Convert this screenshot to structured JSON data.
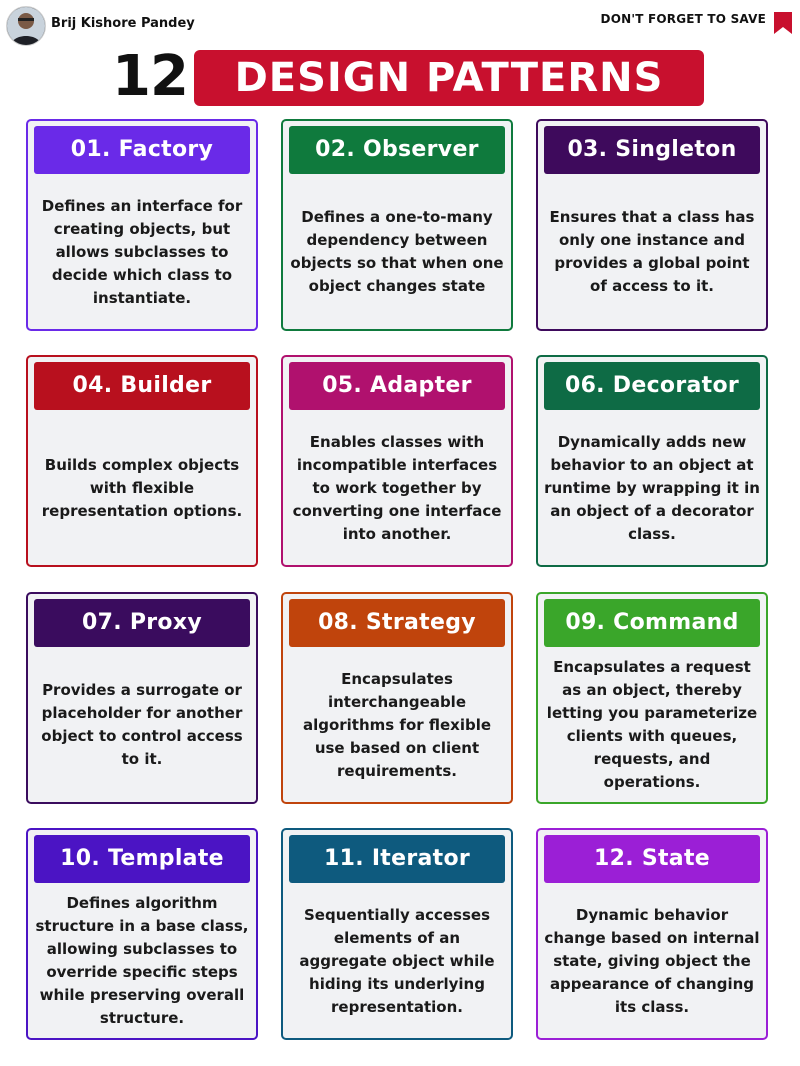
{
  "header": {
    "author": "Brij Kishore Pandey",
    "save_text": "DON'T FORGET TO SAVE",
    "bookmark_color": "#c8102e"
  },
  "title": {
    "number": "12",
    "text": "DESIGN PATTERNS",
    "banner_color": "#c8102e"
  },
  "patterns": [
    {
      "title": "01. Factory",
      "description": "Defines an interface for creating objects, but allows subclasses to decide which class to instantiate.",
      "color": "#6a2ae8"
    },
    {
      "title": "02. Observer",
      "description": "Defines a one-to-many dependency between objects so that when one object changes state",
      "color": "#0f7a3d"
    },
    {
      "title": "03. Singleton",
      "description": "Ensures that a class has only one instance and provides a global point of access to it.",
      "color": "#3e0a5c"
    },
    {
      "title": "04. Builder",
      "description": "Builds complex objects with flexible representation options.",
      "color": "#b8101e"
    },
    {
      "title": "05. Adapter",
      "description": "Enables classes with incompatible interfaces to work together by converting one interface into another.",
      "color": "#b0116e"
    },
    {
      "title": "06. Decorator",
      "description": "Dynamically adds new behavior to an object at runtime by wrapping it in an object of a decorator class.",
      "color": "#0e6b45"
    },
    {
      "title": "07. Proxy",
      "description": "Provides a surrogate or placeholder for another object to control access to it.",
      "color": "#3a0c5e"
    },
    {
      "title": "08. Strategy",
      "description": "Encapsulates interchangeable algorithms for flexible use based on client requirements.",
      "color": "#c0440c"
    },
    {
      "title": "09. Command",
      "description": "Encapsulates a request as an object, thereby letting you parameterize clients with queues, requests, and operations.",
      "color": "#3aa62a"
    },
    {
      "title": "10. Template",
      "description": "Defines algorithm structure in a base class, allowing subclasses to override specific steps while preserving overall structure.",
      "color": "#4b14c4"
    },
    {
      "title": "11. Iterator",
      "description": "Sequentially accesses elements of an aggregate object while hiding its underlying representation.",
      "color": "#0e5a7e"
    },
    {
      "title": "12. State",
      "description": "Dynamic behavior change based on internal state, giving object the appearance of changing its class.",
      "color": "#9b1fd6"
    }
  ]
}
